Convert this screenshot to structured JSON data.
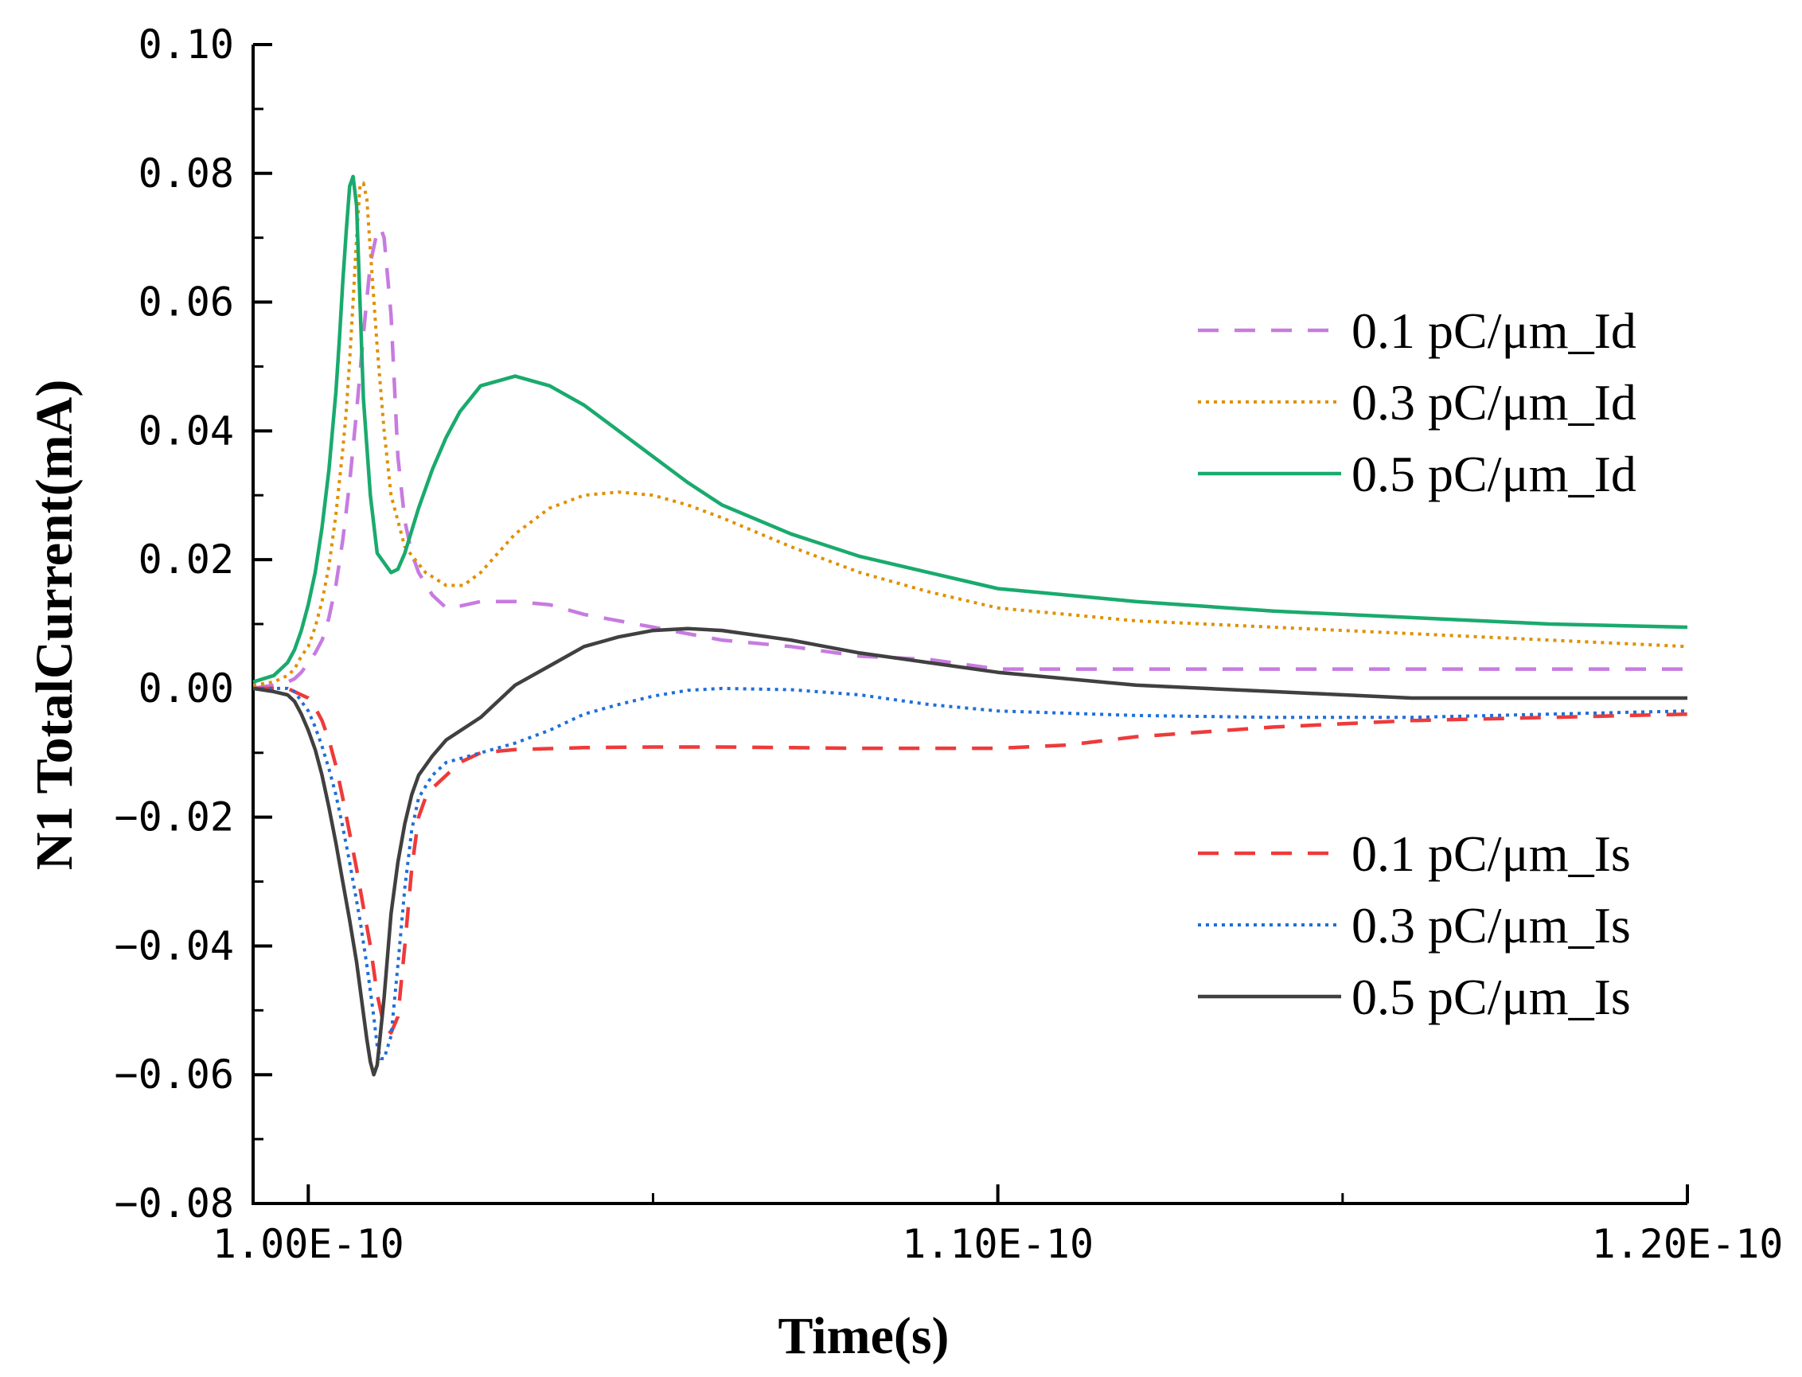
{
  "chart_data": {
    "type": "line",
    "title": "",
    "xlabel": "Time(s)",
    "ylabel": "N1 TotalCurrent(mA)",
    "xlim": [
      9.92e-11,
      1.2e-10
    ],
    "ylim": [
      -0.08,
      0.1
    ],
    "x_ticks": [
      {
        "value": 1e-10,
        "label": "1.00E-10"
      },
      {
        "value": 1.1e-10,
        "label": "1.10E-10"
      },
      {
        "value": 1.2e-10,
        "label": "1.20E-10"
      }
    ],
    "y_ticks": [
      {
        "value": 0.1,
        "label": "0.10"
      },
      {
        "value": 0.08,
        "label": "0.08"
      },
      {
        "value": 0.06,
        "label": "0.06"
      },
      {
        "value": 0.04,
        "label": "0.04"
      },
      {
        "value": 0.02,
        "label": "0.02"
      },
      {
        "value": 0.0,
        "label": "0.00"
      },
      {
        "value": -0.02,
        "label": "−0.02"
      },
      {
        "value": -0.04,
        "label": "−0.04"
      },
      {
        "value": -0.06,
        "label": "−0.06"
      },
      {
        "value": -0.08,
        "label": "−0.08"
      }
    ],
    "legends": [
      {
        "position": "upper-right",
        "series_indices": [
          0,
          1,
          2
        ]
      },
      {
        "position": "lower-right",
        "series_indices": [
          3,
          4,
          5
        ]
      }
    ],
    "series": [
      {
        "name": "0.1 pC/μm_Id",
        "color": "#c77be0",
        "dash": "dashed",
        "x": [
          9.92e-11,
          9.95e-11,
          9.97e-11,
          9.98e-11,
          9.99e-11,
          1e-10,
          1.001e-10,
          1.002e-10,
          1.0025e-10,
          1.003e-10,
          1.0035e-10,
          1.004e-10,
          1.0045e-10,
          1.005e-10,
          1.0055e-10,
          1.006e-10,
          1.007e-10,
          1.008e-10,
          1.009e-10,
          1.01e-10,
          1.0105e-10,
          1.011e-10,
          1.012e-10,
          1.013e-10,
          1.014e-10,
          1.015e-10,
          1.016e-10,
          1.018e-10,
          1.02e-10,
          1.022e-10,
          1.025e-10,
          1.03e-10,
          1.035e-10,
          1.04e-10,
          1.05e-10,
          1.06e-10,
          1.07e-10,
          1.08e-10,
          1.09e-10,
          1.1e-10,
          1.12e-10,
          1.14e-10,
          1.16e-10,
          1.18e-10,
          1.2e-10
        ],
        "y": [
          0.0,
          0.0005,
          0.001,
          0.0015,
          0.0025,
          0.004,
          0.0055,
          0.0075,
          0.009,
          0.011,
          0.0135,
          0.016,
          0.0195,
          0.023,
          0.0275,
          0.032,
          0.043,
          0.055,
          0.066,
          0.071,
          0.0715,
          0.07,
          0.058,
          0.036,
          0.026,
          0.021,
          0.018,
          0.0145,
          0.0125,
          0.0128,
          0.0135,
          0.0135,
          0.013,
          0.0115,
          0.0095,
          0.0075,
          0.0065,
          0.005,
          0.0045,
          0.003,
          0.003,
          0.003,
          0.003,
          0.003,
          0.003
        ]
      },
      {
        "name": "0.3 pC/μm_Id",
        "color": "#e09000",
        "dash": "dotted",
        "x": [
          9.92e-11,
          9.95e-11,
          9.97e-11,
          9.98e-11,
          9.99e-11,
          1e-10,
          1.001e-10,
          1.002e-10,
          1.003e-10,
          1.004e-10,
          1.005e-10,
          1.0055e-10,
          1.006e-10,
          1.0065e-10,
          1.007e-10,
          1.0075e-10,
          1.008e-10,
          1.0085e-10,
          1.009e-10,
          1.01e-10,
          1.011e-10,
          1.012e-10,
          1.014e-10,
          1.017e-10,
          1.02e-10,
          1.0225e-10,
          1.025e-10,
          1.03e-10,
          1.035e-10,
          1.04e-10,
          1.045e-10,
          1.05e-10,
          1.055e-10,
          1.06e-10,
          1.07e-10,
          1.08e-10,
          1.09e-10,
          1.1e-10,
          1.12e-10,
          1.14e-10,
          1.16e-10,
          1.18e-10,
          1.2e-10
        ],
        "y": [
          0.0005,
          0.001,
          0.002,
          0.003,
          0.005,
          0.0065,
          0.0095,
          0.0135,
          0.019,
          0.027,
          0.037,
          0.043,
          0.051,
          0.06,
          0.07,
          0.078,
          0.0785,
          0.076,
          0.068,
          0.053,
          0.04,
          0.03,
          0.022,
          0.018,
          0.016,
          0.016,
          0.018,
          0.024,
          0.028,
          0.03,
          0.0305,
          0.03,
          0.0285,
          0.0265,
          0.022,
          0.018,
          0.015,
          0.0125,
          0.0105,
          0.0095,
          0.0085,
          0.0075,
          0.0065
        ]
      },
      {
        "name": "0.5 pC/μm_Id",
        "color": "#1aaa6e",
        "dash": "solid",
        "x": [
          9.92e-11,
          9.95e-11,
          9.97e-11,
          9.98e-11,
          9.99e-11,
          1e-10,
          1.001e-10,
          1.002e-10,
          1.003e-10,
          1.004e-10,
          1.0045e-10,
          1.005e-10,
          1.0055e-10,
          1.006e-10,
          1.0065e-10,
          1.007e-10,
          1.0075e-10,
          1.008e-10,
          1.009e-10,
          1.01e-10,
          1.012e-10,
          1.013e-10,
          1.014e-10,
          1.016e-10,
          1.018e-10,
          1.02e-10,
          1.022e-10,
          1.025e-10,
          1.03e-10,
          1.035e-10,
          1.04e-10,
          1.045e-10,
          1.05e-10,
          1.055e-10,
          1.06e-10,
          1.07e-10,
          1.08e-10,
          1.09e-10,
          1.1e-10,
          1.12e-10,
          1.14e-10,
          1.16e-10,
          1.18e-10,
          1.2e-10
        ],
        "y": [
          0.001,
          0.002,
          0.004,
          0.006,
          0.009,
          0.013,
          0.018,
          0.025,
          0.034,
          0.046,
          0.054,
          0.063,
          0.071,
          0.078,
          0.0795,
          0.075,
          0.06,
          0.045,
          0.03,
          0.021,
          0.018,
          0.0185,
          0.021,
          0.028,
          0.034,
          0.039,
          0.043,
          0.047,
          0.0485,
          0.047,
          0.044,
          0.04,
          0.036,
          0.032,
          0.0285,
          0.024,
          0.0205,
          0.018,
          0.0155,
          0.0135,
          0.012,
          0.011,
          0.01,
          0.0095
        ]
      },
      {
        "name": "0.1 pC/μm_Is",
        "color": "#ef3a3a",
        "dash": "dashed",
        "x": [
          9.92e-11,
          9.95e-11,
          9.97e-11,
          9.98e-11,
          9.99e-11,
          1e-10,
          1.001e-10,
          1.002e-10,
          1.003e-10,
          1.004e-10,
          1.005e-10,
          1.006e-10,
          1.007e-10,
          1.008e-10,
          1.009e-10,
          1.01e-10,
          1.011e-10,
          1.012e-10,
          1.013e-10,
          1.014e-10,
          1.015e-10,
          1.016e-10,
          1.017e-10,
          1.018e-10,
          1.02e-10,
          1.022e-10,
          1.025e-10,
          1.03e-10,
          1.04e-10,
          1.05e-10,
          1.06e-10,
          1.07e-10,
          1.08e-10,
          1.09e-10,
          1.1e-10,
          1.11e-10,
          1.12e-10,
          1.14e-10,
          1.16e-10,
          1.18e-10,
          1.2e-10
        ],
        "y": [
          0.0,
          0.0,
          0.0,
          -0.0005,
          -0.001,
          -0.0015,
          -0.003,
          -0.005,
          -0.008,
          -0.012,
          -0.017,
          -0.0225,
          -0.028,
          -0.034,
          -0.04,
          -0.0475,
          -0.0525,
          -0.0535,
          -0.051,
          -0.04,
          -0.028,
          -0.02,
          -0.017,
          -0.0155,
          -0.0135,
          -0.0115,
          -0.01,
          -0.0095,
          -0.0092,
          -0.0091,
          -0.0091,
          -0.0092,
          -0.0093,
          -0.0093,
          -0.0093,
          -0.0088,
          -0.0075,
          -0.006,
          -0.005,
          -0.0045,
          -0.004
        ]
      },
      {
        "name": "0.3 pC/μm_Is",
        "color": "#1f6fd8",
        "dash": "dotted",
        "x": [
          9.92e-11,
          9.95e-11,
          9.97e-11,
          9.98e-11,
          9.99e-11,
          1e-10,
          1.001e-10,
          1.002e-10,
          1.003e-10,
          1.004e-10,
          1.005e-10,
          1.006e-10,
          1.007e-10,
          1.0075e-10,
          1.008e-10,
          1.0085e-10,
          1.009e-10,
          1.0095e-10,
          1.01e-10,
          1.0105e-10,
          1.011e-10,
          1.012e-10,
          1.013e-10,
          1.014e-10,
          1.015e-10,
          1.016e-10,
          1.018e-10,
          1.02e-10,
          1.025e-10,
          1.03e-10,
          1.035e-10,
          1.04e-10,
          1.045e-10,
          1.05e-10,
          1.055e-10,
          1.06e-10,
          1.07e-10,
          1.08e-10,
          1.09e-10,
          1.1e-10,
          1.12e-10,
          1.14e-10,
          1.16e-10,
          1.18e-10,
          1.2e-10
        ],
        "y": [
          0.0,
          0.0,
          0.0,
          -0.0005,
          -0.002,
          -0.0035,
          -0.006,
          -0.009,
          -0.0125,
          -0.0165,
          -0.0215,
          -0.027,
          -0.033,
          -0.036,
          -0.0395,
          -0.043,
          -0.047,
          -0.051,
          -0.0555,
          -0.0575,
          -0.0575,
          -0.054,
          -0.043,
          -0.031,
          -0.022,
          -0.017,
          -0.0135,
          -0.0115,
          -0.01,
          -0.0085,
          -0.0065,
          -0.004,
          -0.0025,
          -0.0012,
          -0.0003,
          0.0,
          -0.0002,
          -0.001,
          -0.0025,
          -0.0035,
          -0.0042,
          -0.0045,
          -0.0045,
          -0.004,
          -0.0035
        ]
      },
      {
        "name": "0.5 pC/μm_Is",
        "color": "#404040",
        "dash": "solid",
        "x": [
          9.92e-11,
          9.95e-11,
          9.97e-11,
          9.98e-11,
          9.99e-11,
          1e-10,
          1.001e-10,
          1.002e-10,
          1.003e-10,
          1.004e-10,
          1.005e-10,
          1.006e-10,
          1.007e-10,
          1.0075e-10,
          1.008e-10,
          1.0085e-10,
          1.009e-10,
          1.0095e-10,
          1.01e-10,
          1.011e-10,
          1.012e-10,
          1.013e-10,
          1.014e-10,
          1.015e-10,
          1.016e-10,
          1.018e-10,
          1.02e-10,
          1.025e-10,
          1.03e-10,
          1.035e-10,
          1.04e-10,
          1.045e-10,
          1.05e-10,
          1.055e-10,
          1.06e-10,
          1.07e-10,
          1.08e-10,
          1.09e-10,
          1.1e-10,
          1.12e-10,
          1.14e-10,
          1.16e-10,
          1.18e-10,
          1.2e-10
        ],
        "y": [
          0.0,
          -0.0005,
          -0.001,
          -0.002,
          -0.004,
          -0.0065,
          -0.0095,
          -0.0135,
          -0.0185,
          -0.024,
          -0.03,
          -0.036,
          -0.0425,
          -0.0465,
          -0.0505,
          -0.0545,
          -0.058,
          -0.06,
          -0.0585,
          -0.048,
          -0.035,
          -0.027,
          -0.021,
          -0.0165,
          -0.0135,
          -0.0105,
          -0.008,
          -0.0045,
          0.0005,
          0.0035,
          0.0065,
          0.008,
          0.009,
          0.0093,
          0.009,
          0.0075,
          0.0055,
          0.004,
          0.0025,
          0.0005,
          -0.0005,
          -0.0015,
          -0.0015,
          -0.0015
        ]
      }
    ]
  }
}
